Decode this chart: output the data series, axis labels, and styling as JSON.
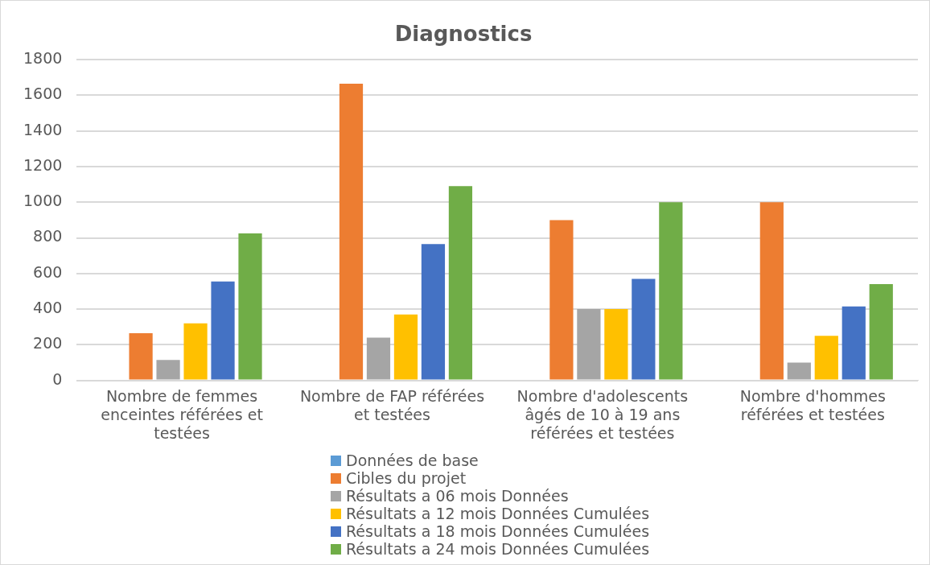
{
  "chart_data": {
    "type": "bar",
    "title": "Diagnostics",
    "categories": [
      "Nombre de femmes enceintes référées et testées",
      "Nombre de FAP référées et testées",
      "Nombre d'adolescents âgés de 10 à 19 ans référées et testées",
      "Nombre d'hommes référées et testées"
    ],
    "series": [
      {
        "name": "Données de base",
        "color": "#5b9bd5",
        "values": [
          null,
          null,
          null,
          null
        ]
      },
      {
        "name": "Cibles du projet",
        "color": "#ed7d31",
        "values": [
          265,
          1665,
          900,
          1000
        ]
      },
      {
        "name": "Résultats a 06 mois Données",
        "color": "#a5a5a5",
        "values": [
          115,
          240,
          400,
          100
        ]
      },
      {
        "name": "Résultats a 12  mois Données Cumulées",
        "color": "#ffc000",
        "values": [
          320,
          370,
          400,
          250
        ]
      },
      {
        "name": "Résultats a 18 mois Données Cumulées",
        "color": "#4472c4",
        "values": [
          555,
          765,
          570,
          415
        ]
      },
      {
        "name": "Résultats a 24  mois Données Cumulées",
        "color": "#70ad47",
        "values": [
          825,
          1090,
          1000,
          540
        ]
      }
    ],
    "ylim": [
      0,
      1800
    ],
    "yticks": [
      0,
      200,
      400,
      600,
      800,
      1000,
      1200,
      1400,
      1600,
      1800
    ],
    "grid": "y",
    "legend": "bottom"
  }
}
